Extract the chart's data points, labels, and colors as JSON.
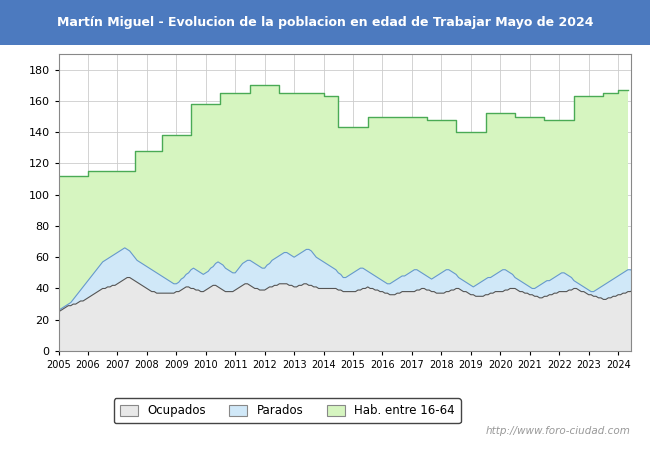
{
  "title": "Martín Miguel - Evolucion de la poblacion en edad de Trabajar Mayo de 2024",
  "title_bg_color": "#4c7abf",
  "title_text_color": "#ffffff",
  "ylim": [
    0,
    190
  ],
  "yticks": [
    0,
    20,
    40,
    60,
    80,
    100,
    120,
    140,
    160,
    180
  ],
  "watermark": "http://www.foro-ciudad.com",
  "legend_labels": [
    "Ocupados",
    "Parados",
    "Hab. entre 16-64"
  ],
  "hab_fill_color": "#d6f5c0",
  "hab_line_color": "#4aaa55",
  "parados_fill_color": "#d0e8f8",
  "parados_line_color": "#6699cc",
  "ocupados_fill_color": "#e8e8e8",
  "ocupados_line_color": "#555555",
  "grid_color": "#cccccc",
  "plot_bg_color": "#ffffff",
  "hab_yearly": {
    "2005_1": 112,
    "2005_2": 112,
    "2005_3": 112,
    "2005_4": 112,
    "2005_5": 112,
    "2005_6": 112,
    "2005_7": 112,
    "2005_8": 112,
    "2005_9": 112,
    "2005_10": 112,
    "2005_11": 112,
    "2005_12": 112,
    "2006_1": 115,
    "2006_2": 115,
    "2006_3": 115,
    "2006_4": 115,
    "2006_5": 115,
    "2006_6": 115,
    "2006_7": 115,
    "2006_8": 115,
    "2006_9": 115,
    "2006_10": 115,
    "2006_11": 115,
    "2006_12": 115,
    "2007_1": 115,
    "2007_2": 115,
    "2007_3": 115,
    "2007_4": 115,
    "2007_5": 115,
    "2007_6": 115,
    "2007_7": 115,
    "2007_8": 128,
    "2007_9": 128,
    "2007_10": 128,
    "2007_11": 128,
    "2007_12": 128,
    "2008_1": 128,
    "2008_2": 128,
    "2008_3": 128,
    "2008_4": 128,
    "2008_5": 128,
    "2008_6": 128,
    "2008_7": 138,
    "2008_8": 138,
    "2008_9": 138,
    "2008_10": 138,
    "2008_11": 138,
    "2008_12": 138,
    "2009_1": 138,
    "2009_2": 138,
    "2009_3": 138,
    "2009_4": 138,
    "2009_5": 138,
    "2009_6": 138,
    "2009_7": 158,
    "2009_8": 158,
    "2009_9": 158,
    "2009_10": 158,
    "2009_11": 158,
    "2009_12": 158,
    "2010_1": 158,
    "2010_2": 158,
    "2010_3": 158,
    "2010_4": 158,
    "2010_5": 158,
    "2010_6": 158,
    "2010_7": 165,
    "2010_8": 165,
    "2010_9": 165,
    "2010_10": 165,
    "2010_11": 165,
    "2010_12": 165,
    "2011_1": 165,
    "2011_2": 165,
    "2011_3": 165,
    "2011_4": 165,
    "2011_5": 165,
    "2011_6": 165,
    "2011_7": 170,
    "2011_8": 170,
    "2011_9": 170,
    "2011_10": 170,
    "2011_11": 170,
    "2011_12": 170,
    "2012_1": 170,
    "2012_2": 170,
    "2012_3": 170,
    "2012_4": 170,
    "2012_5": 170,
    "2012_6": 170,
    "2012_7": 165,
    "2012_8": 165,
    "2012_9": 165,
    "2012_10": 165,
    "2012_11": 165,
    "2012_12": 165,
    "2013_1": 165,
    "2013_2": 165,
    "2013_3": 165,
    "2013_4": 165,
    "2013_5": 165,
    "2013_6": 165,
    "2013_7": 165,
    "2013_8": 165,
    "2013_9": 165,
    "2013_10": 165,
    "2013_11": 165,
    "2013_12": 165,
    "2014_1": 163,
    "2014_2": 163,
    "2014_3": 163,
    "2014_4": 163,
    "2014_5": 163,
    "2014_6": 163,
    "2014_7": 143,
    "2014_8": 143,
    "2014_9": 143,
    "2014_10": 143,
    "2014_11": 143,
    "2014_12": 143,
    "2015_1": 143,
    "2015_2": 143,
    "2015_3": 143,
    "2015_4": 143,
    "2015_5": 143,
    "2015_6": 143,
    "2015_7": 150,
    "2015_8": 150,
    "2015_9": 150,
    "2015_10": 150,
    "2015_11": 150,
    "2015_12": 150,
    "2016_1": 150,
    "2016_2": 150,
    "2016_3": 150,
    "2016_4": 150,
    "2016_5": 150,
    "2016_6": 150,
    "2016_7": 150,
    "2016_8": 150,
    "2016_9": 150,
    "2016_10": 150,
    "2016_11": 150,
    "2016_12": 150,
    "2017_1": 150,
    "2017_2": 150,
    "2017_3": 150,
    "2017_4": 150,
    "2017_5": 150,
    "2017_6": 150,
    "2017_7": 148,
    "2017_8": 148,
    "2017_9": 148,
    "2017_10": 148,
    "2017_11": 148,
    "2017_12": 148,
    "2018_1": 148,
    "2018_2": 148,
    "2018_3": 148,
    "2018_4": 148,
    "2018_5": 148,
    "2018_6": 148,
    "2018_7": 140,
    "2018_8": 140,
    "2018_9": 140,
    "2018_10": 140,
    "2018_11": 140,
    "2018_12": 140,
    "2019_1": 140,
    "2019_2": 140,
    "2019_3": 140,
    "2019_4": 140,
    "2019_5": 140,
    "2019_6": 140,
    "2019_7": 152,
    "2019_8": 152,
    "2019_9": 152,
    "2019_10": 152,
    "2019_11": 152,
    "2019_12": 152,
    "2020_1": 152,
    "2020_2": 152,
    "2020_3": 152,
    "2020_4": 152,
    "2020_5": 152,
    "2020_6": 152,
    "2020_7": 150,
    "2020_8": 150,
    "2020_9": 150,
    "2020_10": 150,
    "2020_11": 150,
    "2020_12": 150,
    "2021_1": 150,
    "2021_2": 150,
    "2021_3": 150,
    "2021_4": 150,
    "2021_5": 150,
    "2021_6": 150,
    "2021_7": 148,
    "2021_8": 148,
    "2021_9": 148,
    "2021_10": 148,
    "2021_11": 148,
    "2021_12": 148,
    "2022_1": 148,
    "2022_2": 148,
    "2022_3": 148,
    "2022_4": 148,
    "2022_5": 148,
    "2022_6": 148,
    "2022_7": 163,
    "2022_8": 163,
    "2022_9": 163,
    "2022_10": 163,
    "2022_11": 163,
    "2022_12": 163,
    "2023_1": 163,
    "2023_2": 163,
    "2023_3": 163,
    "2023_4": 163,
    "2023_5": 163,
    "2023_6": 163,
    "2023_7": 165,
    "2023_8": 165,
    "2023_9": 165,
    "2023_10": 165,
    "2023_11": 165,
    "2023_12": 165,
    "2024_1": 167,
    "2024_2": 167,
    "2024_3": 167,
    "2024_4": 167,
    "2024_5": 167
  },
  "parados_monthly": [
    26,
    27,
    28,
    29,
    30,
    31,
    33,
    35,
    37,
    39,
    41,
    43,
    45,
    47,
    49,
    51,
    53,
    55,
    57,
    58,
    59,
    60,
    61,
    62,
    63,
    64,
    65,
    66,
    65,
    64,
    62,
    60,
    58,
    57,
    56,
    55,
    54,
    53,
    52,
    51,
    50,
    49,
    48,
    47,
    46,
    45,
    44,
    43,
    43,
    44,
    46,
    47,
    49,
    50,
    52,
    53,
    52,
    51,
    50,
    49,
    50,
    51,
    53,
    54,
    56,
    57,
    56,
    55,
    53,
    52,
    51,
    50,
    50,
    52,
    54,
    56,
    57,
    58,
    58,
    57,
    56,
    55,
    54,
    53,
    53,
    55,
    56,
    58,
    59,
    60,
    61,
    62,
    63,
    63,
    62,
    61,
    60,
    61,
    62,
    63,
    64,
    65,
    65,
    64,
    62,
    60,
    59,
    58,
    57,
    56,
    55,
    54,
    53,
    52,
    50,
    49,
    47,
    47,
    48,
    49,
    50,
    51,
    52,
    53,
    53,
    52,
    51,
    50,
    49,
    48,
    47,
    46,
    45,
    44,
    43,
    43,
    44,
    45,
    46,
    47,
    48,
    48,
    49,
    50,
    51,
    52,
    52,
    51,
    50,
    49,
    48,
    47,
    46,
    47,
    48,
    49,
    50,
    51,
    52,
    52,
    51,
    50,
    49,
    47,
    46,
    45,
    44,
    43,
    42,
    41,
    42,
    43,
    44,
    45,
    46,
    47,
    47,
    48,
    49,
    50,
    51,
    52,
    52,
    51,
    50,
    49,
    47,
    46,
    45,
    44,
    43,
    42,
    41,
    40,
    40,
    41,
    42,
    43,
    44,
    45,
    45,
    46,
    47,
    48,
    49,
    50,
    50,
    49,
    48,
    47,
    45,
    44,
    43,
    42,
    41,
    40,
    39,
    38,
    38,
    39,
    40,
    41,
    42,
    43,
    44,
    45,
    46,
    47,
    48,
    49,
    50,
    51,
    52,
    52,
    51,
    50,
    49,
    48,
    47,
    46,
    45,
    44,
    43,
    44,
    45,
    46,
    47,
    48,
    48,
    49,
    50,
    51,
    52,
    53,
    53,
    52,
    51,
    50,
    49,
    48,
    47,
    46,
    45,
    44,
    43,
    42,
    42,
    43,
    44,
    45,
    46,
    47,
    47,
    48,
    49,
    50,
    51,
    52,
    52,
    51,
    50,
    49,
    47,
    46,
    46,
    47,
    48,
    49,
    50,
    51,
    52,
    53,
    54,
    55,
    55,
    54,
    53,
    52,
    51,
    50,
    49,
    48,
    47,
    48,
    49,
    50,
    51,
    52,
    50,
    49,
    48,
    47,
    46,
    45,
    44,
    43,
    42,
    41,
    40,
    39,
    39,
    40,
    41,
    42,
    43,
    44,
    45,
    46,
    47,
    48,
    49,
    50,
    50,
    49,
    48,
    47,
    46,
    45,
    44,
    43,
    42,
    41,
    40,
    39,
    39,
    40,
    41,
    42,
    43,
    44,
    45,
    46,
    47,
    48,
    49,
    50,
    51
  ],
  "ocupados_monthly": [
    25,
    26,
    27,
    28,
    29,
    29,
    30,
    30,
    31,
    32,
    32,
    33,
    34,
    35,
    36,
    37,
    38,
    39,
    40,
    40,
    41,
    41,
    42,
    42,
    43,
    44,
    45,
    46,
    47,
    47,
    46,
    45,
    44,
    43,
    42,
    41,
    40,
    39,
    38,
    38,
    37,
    37,
    37,
    37,
    37,
    37,
    37,
    37,
    38,
    38,
    39,
    40,
    41,
    41,
    40,
    40,
    39,
    39,
    38,
    38,
    39,
    40,
    41,
    42,
    42,
    41,
    40,
    39,
    38,
    38,
    38,
    38,
    39,
    40,
    41,
    42,
    43,
    43,
    42,
    41,
    40,
    40,
    39,
    39,
    39,
    40,
    41,
    41,
    42,
    42,
    43,
    43,
    43,
    43,
    42,
    42,
    41,
    41,
    42,
    42,
    43,
    43,
    42,
    42,
    41,
    41,
    40,
    40,
    40,
    40,
    40,
    40,
    40,
    40,
    39,
    39,
    38,
    38,
    38,
    38,
    38,
    38,
    39,
    39,
    40,
    40,
    41,
    40,
    40,
    39,
    39,
    38,
    38,
    37,
    37,
    36,
    36,
    36,
    37,
    37,
    38,
    38,
    38,
    38,
    38,
    38,
    39,
    39,
    40,
    40,
    39,
    39,
    38,
    38,
    37,
    37,
    37,
    37,
    38,
    38,
    39,
    39,
    40,
    40,
    39,
    38,
    38,
    37,
    36,
    36,
    35,
    35,
    35,
    35,
    36,
    36,
    37,
    37,
    38,
    38,
    38,
    38,
    39,
    39,
    40,
    40,
    40,
    39,
    38,
    38,
    37,
    37,
    36,
    36,
    35,
    35,
    34,
    34,
    35,
    35,
    36,
    36,
    37,
    37,
    38,
    38,
    38,
    38,
    39,
    39,
    40,
    40,
    39,
    38,
    38,
    37,
    36,
    36,
    35,
    35,
    34,
    34,
    33,
    33,
    34,
    34,
    35,
    35,
    36,
    36,
    37,
    37,
    38,
    38,
    39,
    39,
    40,
    40,
    41,
    41,
    40,
    39,
    39,
    38,
    37,
    37,
    36,
    36,
    36,
    37,
    37,
    38,
    38,
    39,
    39,
    39,
    40,
    40,
    41,
    41,
    40,
    40,
    39,
    39,
    38,
    38,
    37,
    37,
    36,
    36,
    35,
    35,
    36,
    36,
    37,
    37,
    38,
    38,
    38,
    38,
    39,
    39,
    40,
    40,
    41,
    40,
    39,
    38,
    37,
    37,
    37,
    38,
    38,
    39,
    39,
    40,
    40,
    41,
    41,
    42,
    41,
    40,
    40,
    39,
    38,
    38,
    37,
    37,
    37,
    38,
    38,
    39,
    39,
    40,
    39,
    38,
    38,
    37,
    36,
    36,
    35,
    35,
    34,
    34,
    33,
    33,
    33,
    34,
    34,
    35,
    35,
    36,
    36,
    37,
    37,
    38,
    38,
    39,
    38,
    38,
    37,
    37,
    36,
    36,
    35,
    35,
    34,
    34,
    33,
    33,
    34,
    35,
    35,
    36,
    36,
    37,
    39
  ]
}
